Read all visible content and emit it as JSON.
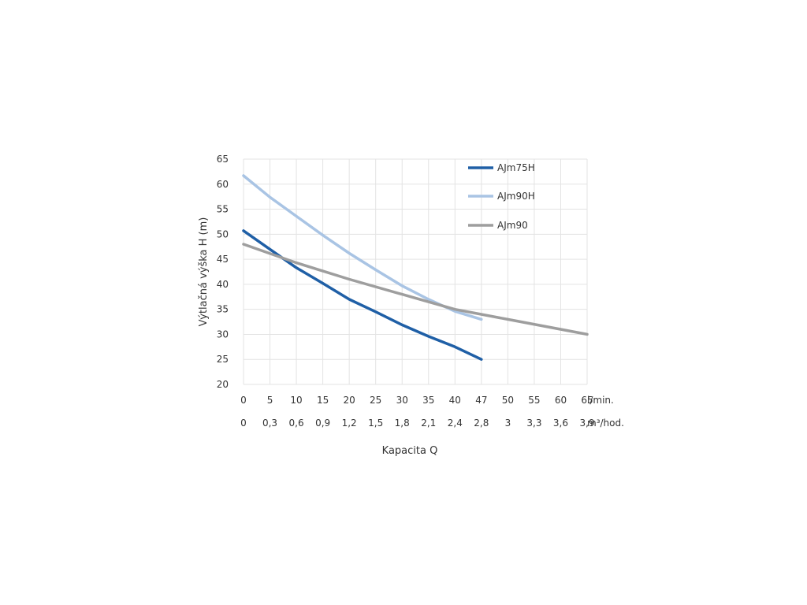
{
  "chart_data": {
    "type": "line",
    "title": "",
    "xlabel": "Kapacita Q",
    "ylabel": "Výtlačná výška H (m)",
    "ylim": [
      20,
      65
    ],
    "yticks": [
      "20",
      "25",
      "30",
      "35",
      "40",
      "45",
      "50",
      "55",
      "60",
      "65"
    ],
    "xlim": [
      0,
      65
    ],
    "x_ticks_lmin": [
      "0",
      "5",
      "10",
      "15",
      "20",
      "25",
      "30",
      "35",
      "40",
      "47",
      "50",
      "55",
      "60",
      "65"
    ],
    "x_ticks_m3h": [
      "0",
      "0,3",
      "0,6",
      "0,9",
      "1,2",
      "1,5",
      "1,8",
      "2,1",
      "2,4",
      "2,8",
      "3",
      "3,3",
      "3,6",
      "3,9"
    ],
    "x_unit_lmin": "l/min.",
    "x_unit_m3h": "m³/hod.",
    "grid": true,
    "legend_position": "top-right",
    "series": [
      {
        "name": "AJm75H",
        "color": "#1f5fa6",
        "x": [
          0,
          5,
          10,
          15,
          20,
          25,
          30,
          35,
          40,
          45
        ],
        "y": [
          50.7,
          47,
          43.3,
          40.2,
          37,
          34.5,
          31.9,
          29.6,
          27.5,
          25
        ]
      },
      {
        "name": "AJm90H",
        "color": "#a9c4e4",
        "x": [
          0,
          5,
          10,
          15,
          20,
          25,
          30,
          35,
          40,
          45
        ],
        "y": [
          61.7,
          57.4,
          53.6,
          49.8,
          46.2,
          42.9,
          39.7,
          37,
          34.6,
          33
        ]
      },
      {
        "name": "AJm90",
        "color": "#9e9e9e",
        "x": [
          0,
          10,
          20,
          30,
          40,
          50,
          65
        ],
        "y": [
          48,
          44.3,
          41,
          38,
          35,
          33,
          30
        ]
      }
    ]
  }
}
